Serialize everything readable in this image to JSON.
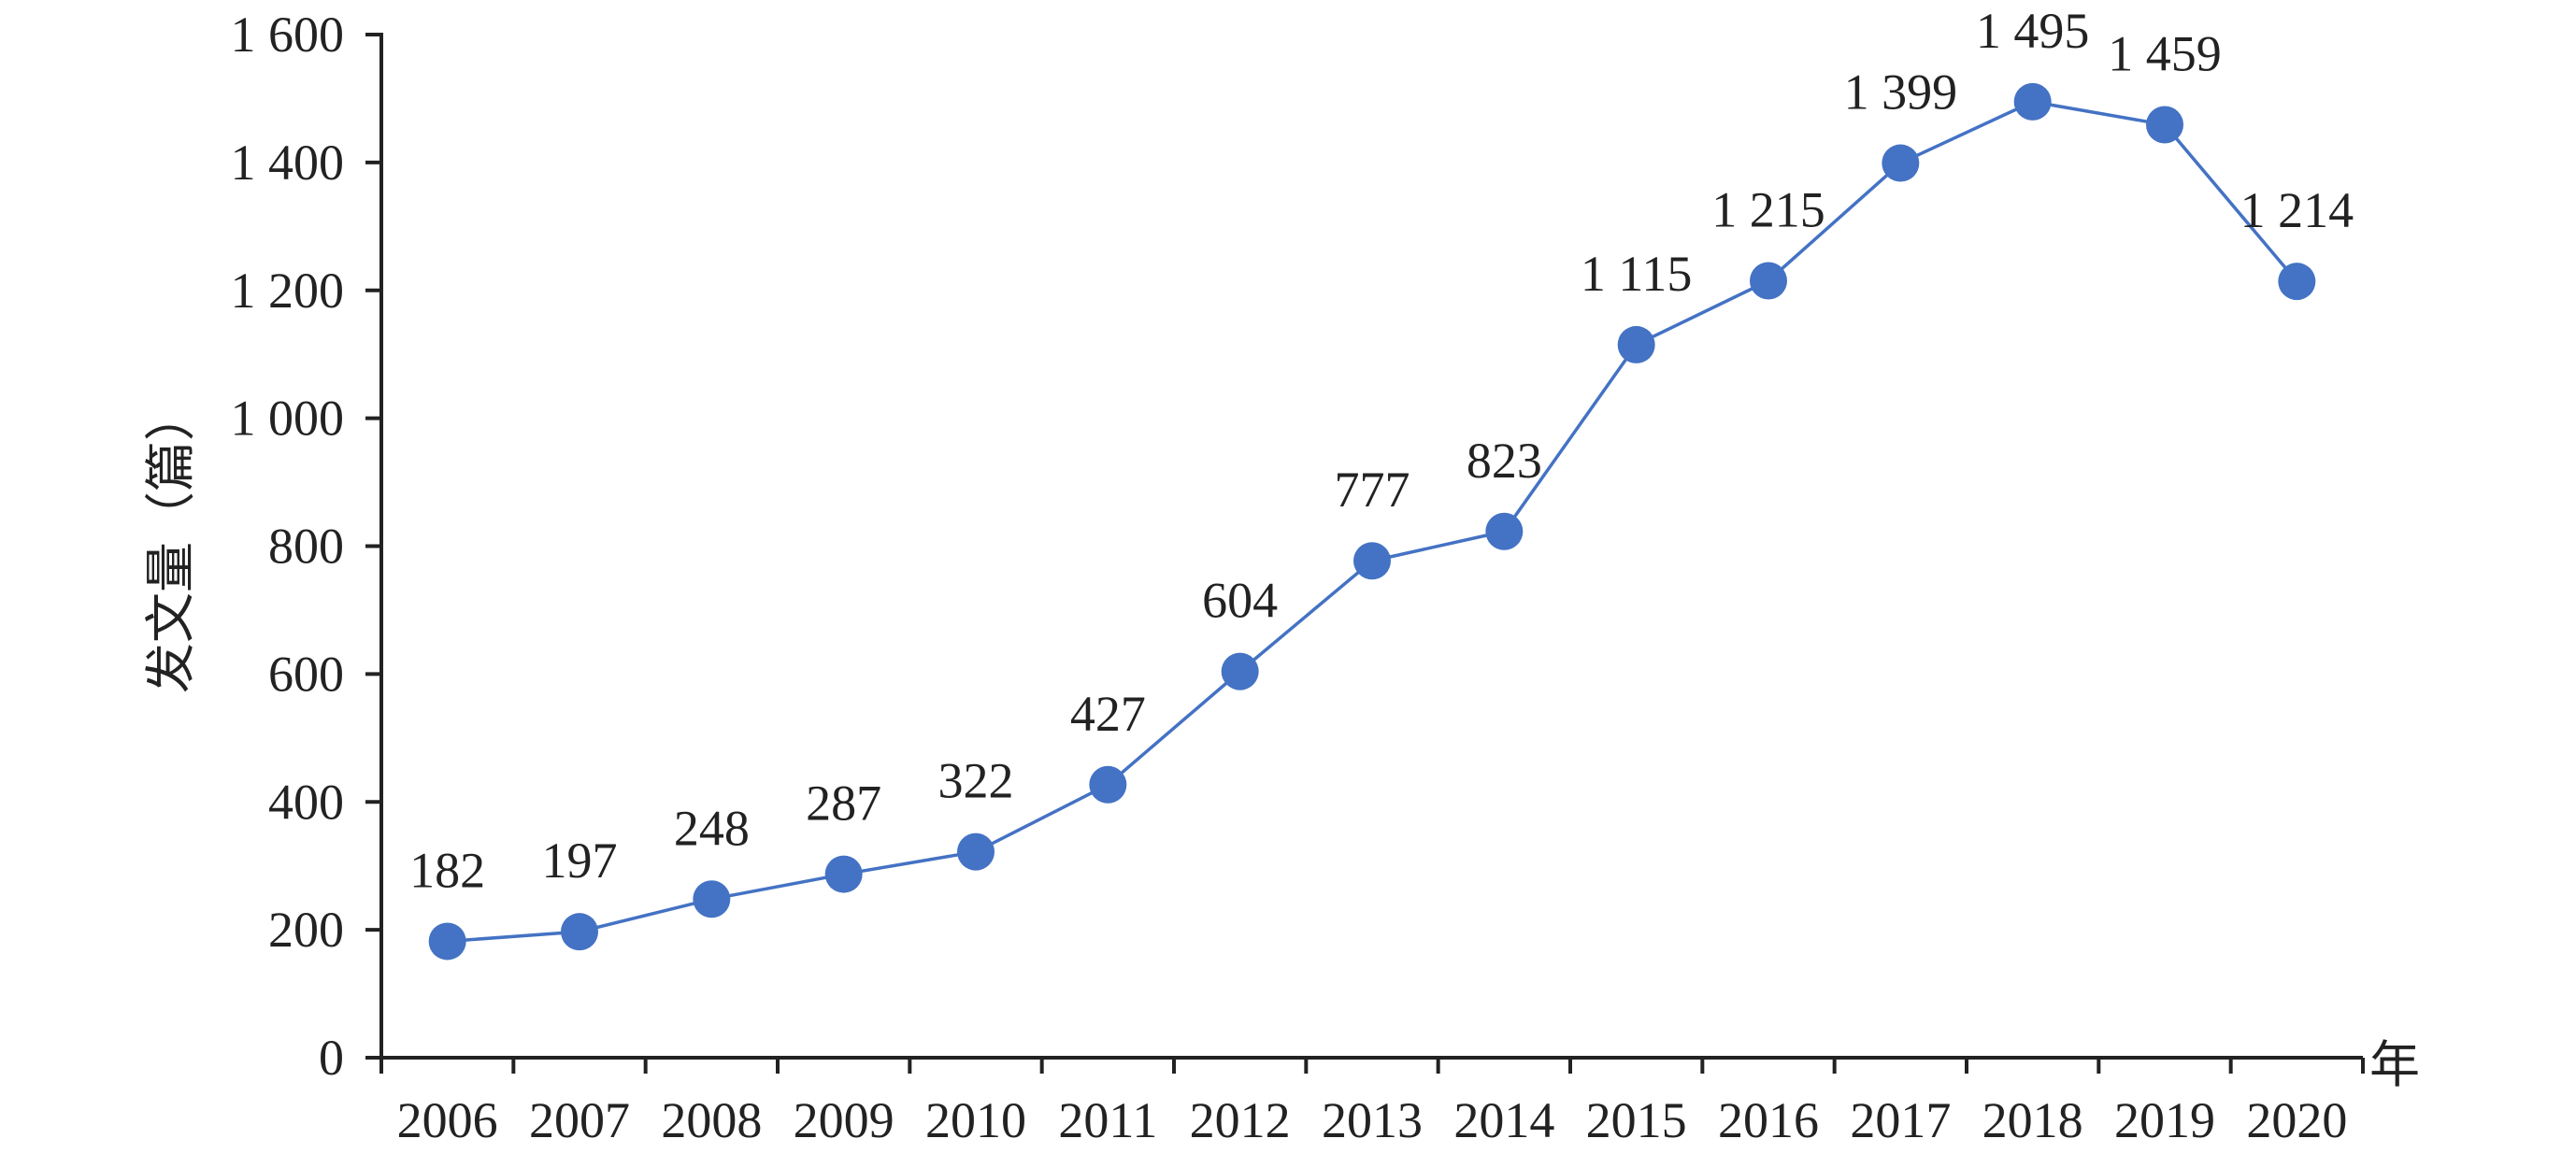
{
  "chart_data": {
    "type": "line",
    "title": "",
    "xlabel": "年",
    "ylabel": "发文量（篇）",
    "categories": [
      "2006",
      "2007",
      "2008",
      "2009",
      "2010",
      "2011",
      "2012",
      "2013",
      "2014",
      "2015",
      "2016",
      "2017",
      "2018",
      "2019",
      "2020"
    ],
    "series": [
      {
        "values": [
          182,
          197,
          248,
          287,
          322,
          427,
          604,
          777,
          823,
          1115,
          1215,
          1399,
          1495,
          1459,
          1214
        ],
        "labels": [
          "182",
          "197",
          "248",
          "287",
          "322",
          "427",
          "604",
          "777",
          "823",
          "1 115",
          "1 215",
          "1 399",
          "1 495",
          "1 459",
          "1 214"
        ]
      }
    ],
    "ylim": [
      0,
      1600
    ],
    "yticks": [
      0,
      200,
      400,
      600,
      800,
      1000,
      1200,
      1400,
      1600
    ],
    "ytick_labels": [
      "0",
      "200",
      "400",
      "600",
      "800",
      "1 000",
      "1 200",
      "1 400",
      "1 600"
    ],
    "grid": false,
    "legend": "none",
    "colors": {
      "line": "#4472C4",
      "marker": "#4472C4",
      "axis": "#222222"
    }
  }
}
